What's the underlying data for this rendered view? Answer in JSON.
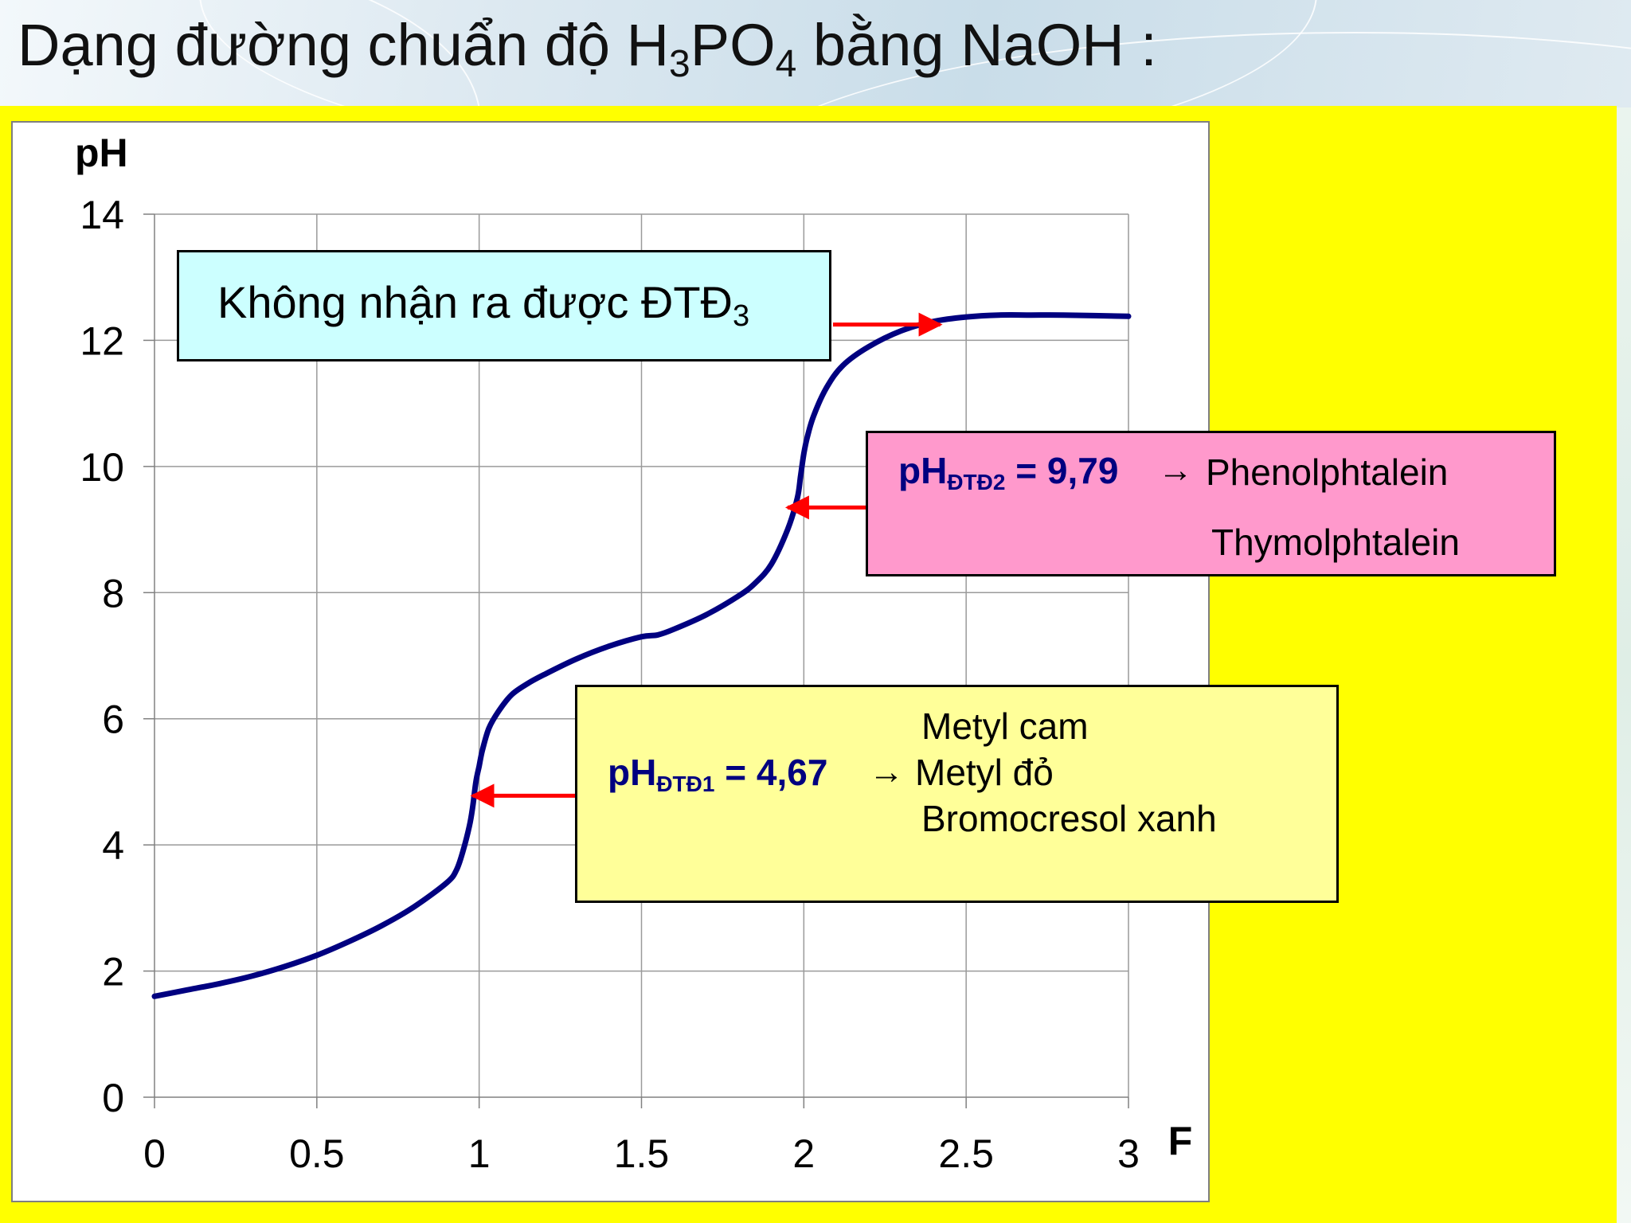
{
  "title": {
    "prefix": "Dạng đường chuẩn độ H",
    "sub1": "3",
    "mid": "PO",
    "sub2": "4",
    "suffix": " bằng NaOH :"
  },
  "colors": {
    "curve": "#000080",
    "arrow": "#ff0000",
    "slide_bg": "#ffff00",
    "box3_bg": "#ccffff",
    "box2_bg": "#ff99cc",
    "box1_bg": "#ffff99",
    "ph_text": "#000080"
  },
  "chart_data": {
    "type": "line",
    "xlabel": "F",
    "ylabel": "pH",
    "xlim": [
      0,
      3
    ],
    "ylim": [
      0,
      14
    ],
    "x_ticks": [
      "0",
      "0.5",
      "1",
      "1.5",
      "2",
      "2.5",
      "3"
    ],
    "y_ticks": [
      "0",
      "2",
      "4",
      "6",
      "8",
      "10",
      "12",
      "14"
    ],
    "grid": true,
    "series": [
      {
        "x": [
          0,
          0.1,
          0.2,
          0.3,
          0.4,
          0.5,
          0.6,
          0.7,
          0.8,
          0.9,
          0.93,
          0.95,
          0.97,
          0.98,
          0.99,
          1.0,
          1.01,
          1.03,
          1.06,
          1.1,
          1.15,
          1.2,
          1.3,
          1.4,
          1.5,
          1.55,
          1.6,
          1.7,
          1.8,
          1.85,
          1.9,
          1.95,
          1.98,
          1.99,
          2.0,
          2.01,
          2.03,
          2.07,
          2.12,
          2.2,
          2.3,
          2.4,
          2.5,
          2.6,
          2.7,
          2.8,
          3.0
        ],
        "y": [
          1.6,
          1.7,
          1.8,
          1.92,
          2.07,
          2.25,
          2.47,
          2.72,
          3.02,
          3.4,
          3.6,
          3.9,
          4.3,
          4.6,
          5.0,
          5.25,
          5.5,
          5.85,
          6.12,
          6.38,
          6.56,
          6.7,
          6.95,
          7.15,
          7.3,
          7.33,
          7.42,
          7.65,
          7.95,
          8.15,
          8.45,
          9.0,
          9.5,
          9.85,
          10.2,
          10.45,
          10.8,
          11.25,
          11.6,
          11.9,
          12.15,
          12.3,
          12.37,
          12.4,
          12.4,
          12.4,
          12.38
        ]
      }
    ],
    "annotations": [
      {
        "text_main": "Không nhận ra được ĐTĐ",
        "text_sub": "3",
        "points_to": [
          2.42,
          12.25
        ]
      },
      {
        "ph_label": "pH",
        "ph_sub": "ĐTĐ2",
        "ph_value": " = 9,79",
        "arrow": "→",
        "indicators": [
          "Phenolphtalein",
          "Thymolphtalein"
        ],
        "points_to": [
          1.95,
          9.35
        ]
      },
      {
        "ph_label": "pH",
        "ph_sub": "ĐTĐ1",
        "ph_value": " = 4,67",
        "arrow": "→",
        "indicators": [
          "Metyl cam",
          "Metyl đỏ",
          "Bromocresol xanh"
        ],
        "points_to": [
          0.98,
          4.78
        ]
      }
    ]
  }
}
